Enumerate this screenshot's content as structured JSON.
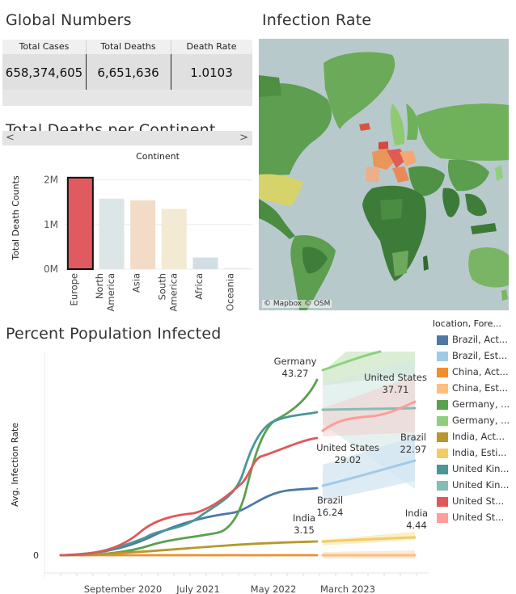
{
  "titles": {
    "global_numbers": "Global Numbers",
    "infection_rate": "Infection Rate",
    "deaths_per_continent": "Total Deaths per Continent",
    "percent_infected": "Percent Population Infected"
  },
  "global_numbers": {
    "headers": [
      "Total Cases",
      "Total Deaths",
      "Death Rate"
    ],
    "values": [
      "658,374,605",
      "6,651,636",
      "1.0103"
    ],
    "scroll_left": "<",
    "scroll_right": ">"
  },
  "map": {
    "credit": "© Mapbox  © OSM"
  },
  "chart_data": [
    {
      "type": "bar",
      "title": "Total Deaths per Continent",
      "header": "Continent",
      "ylabel": "Total Death Counts",
      "yticks": [
        "2M",
        "1M",
        "0M"
      ],
      "ylim": [
        0,
        2300000
      ],
      "categories": [
        "Europe",
        "North America",
        "Asia",
        "South America",
        "Africa",
        "Oceania"
      ],
      "category_labels": [
        [
          "Europe"
        ],
        [
          "North",
          "America"
        ],
        [
          "Asia"
        ],
        [
          "South",
          "America"
        ],
        [
          "Africa"
        ],
        [
          "Oceania"
        ]
      ],
      "values": [
        2050000,
        1580000,
        1540000,
        1350000,
        260000,
        25000
      ],
      "colors": [
        "#e05a5f",
        "#dde6e6",
        "#f2dcc8",
        "#f2ead2",
        "#d3dde4",
        "#e6eaee"
      ],
      "highlighted": "Europe"
    },
    {
      "type": "line",
      "title": "Percent Population Infected",
      "ylabel": "Avg. Infection Rate",
      "yticks": [
        "0"
      ],
      "xticks": [
        "September 2020",
        "July 2021",
        "May 2022",
        "March 2023"
      ],
      "annotations": [
        {
          "country": "Germany",
          "value": "43.27"
        },
        {
          "country": "United States",
          "value": "37.71"
        },
        {
          "country": "United States",
          "value": "29.02"
        },
        {
          "country": "Brazil",
          "value": "22.97"
        },
        {
          "country": "Brazil",
          "value": "16.24"
        },
        {
          "country": "India",
          "value": "4.44"
        },
        {
          "country": "India",
          "value": "3.15"
        }
      ],
      "legend_title": "location, Fore...",
      "legend": [
        {
          "label": "Brazil, Act...",
          "color": "#4e79a7"
        },
        {
          "label": "Brazil, Est...",
          "color": "#a0cbe8"
        },
        {
          "label": "China, Act...",
          "color": "#f28e2b"
        },
        {
          "label": "China, Est...",
          "color": "#ffbe7d"
        },
        {
          "label": "Germany, ...",
          "color": "#59a14f"
        },
        {
          "label": "Germany, ...",
          "color": "#8cd17d"
        },
        {
          "label": "India, Act...",
          "color": "#b6992d"
        },
        {
          "label": "India, Esti...",
          "color": "#f1ce63"
        },
        {
          "label": "United Kin...",
          "color": "#499894"
        },
        {
          "label": "United Kin...",
          "color": "#86bcb6"
        },
        {
          "label": "United St...",
          "color": "#e15759"
        },
        {
          "label": "United St...",
          "color": "#ff9d9a"
        }
      ]
    }
  ]
}
